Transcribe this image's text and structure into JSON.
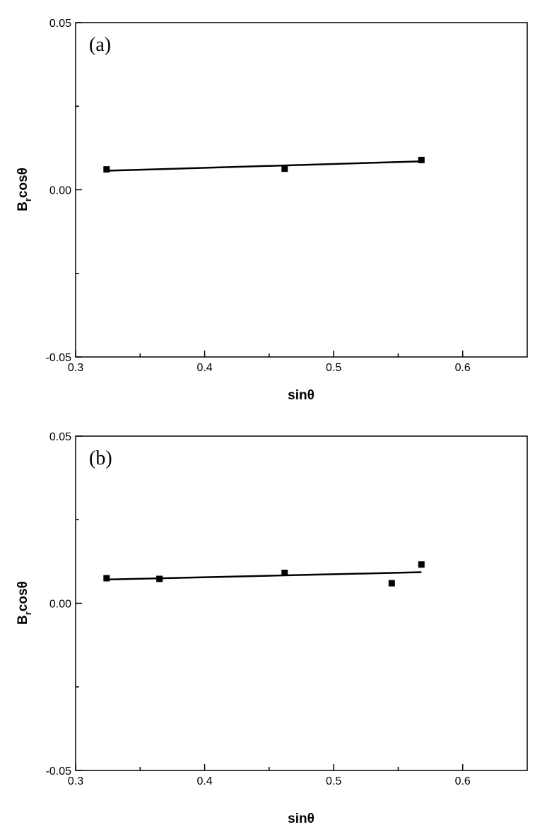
{
  "chart_data": [
    {
      "type": "scatter",
      "panel_label": "(a)",
      "xlabel": "sinθ",
      "ylabel_main": "B",
      "ylabel_sub": "r",
      "ylabel_rest": "cosθ",
      "xlim": [
        0.3,
        0.65
      ],
      "ylim": [
        -0.05,
        0.05
      ],
      "xticks": [
        0.3,
        0.4,
        0.5,
        0.6
      ],
      "xtick_labels": [
        "0.3",
        "0.4",
        "0.5",
        "0.6"
      ],
      "xminor": [
        0.35,
        0.45,
        0.55
      ],
      "yticks": [
        -0.05,
        0.0,
        0.05
      ],
      "ytick_labels": [
        "-0.05",
        "0.00",
        "0.05"
      ],
      "yminor": [
        -0.025,
        0.025
      ],
      "points": [
        {
          "x": 0.324,
          "y": 0.0061
        },
        {
          "x": 0.462,
          "y": 0.0063
        },
        {
          "x": 0.568,
          "y": 0.0089
        }
      ],
      "fit_line": {
        "x": [
          0.324,
          0.568
        ],
        "y": [
          0.0057,
          0.0085
        ]
      }
    },
    {
      "type": "scatter",
      "panel_label": "(b)",
      "xlabel": "sinθ",
      "ylabel_main": "B",
      "ylabel_sub": "r",
      "ylabel_rest": "cosθ",
      "xlim": [
        0.3,
        0.65
      ],
      "ylim": [
        -0.05,
        0.05
      ],
      "xticks": [
        0.3,
        0.4,
        0.5,
        0.6
      ],
      "xtick_labels": [
        "0.3",
        "0.4",
        "0.5",
        "0.6"
      ],
      "xminor": [
        0.35,
        0.45,
        0.55
      ],
      "yticks": [
        -0.05,
        0.0,
        0.05
      ],
      "ytick_labels": [
        "-0.05",
        "0.00",
        "0.05"
      ],
      "yminor": [
        -0.025,
        0.025
      ],
      "points": [
        {
          "x": 0.324,
          "y": 0.0075
        },
        {
          "x": 0.365,
          "y": 0.0073
        },
        {
          "x": 0.462,
          "y": 0.0091
        },
        {
          "x": 0.545,
          "y": 0.006
        },
        {
          "x": 0.568,
          "y": 0.0116
        }
      ],
      "fit_line": {
        "x": [
          0.324,
          0.568
        ],
        "y": [
          0.0071,
          0.0093
        ]
      }
    }
  ]
}
